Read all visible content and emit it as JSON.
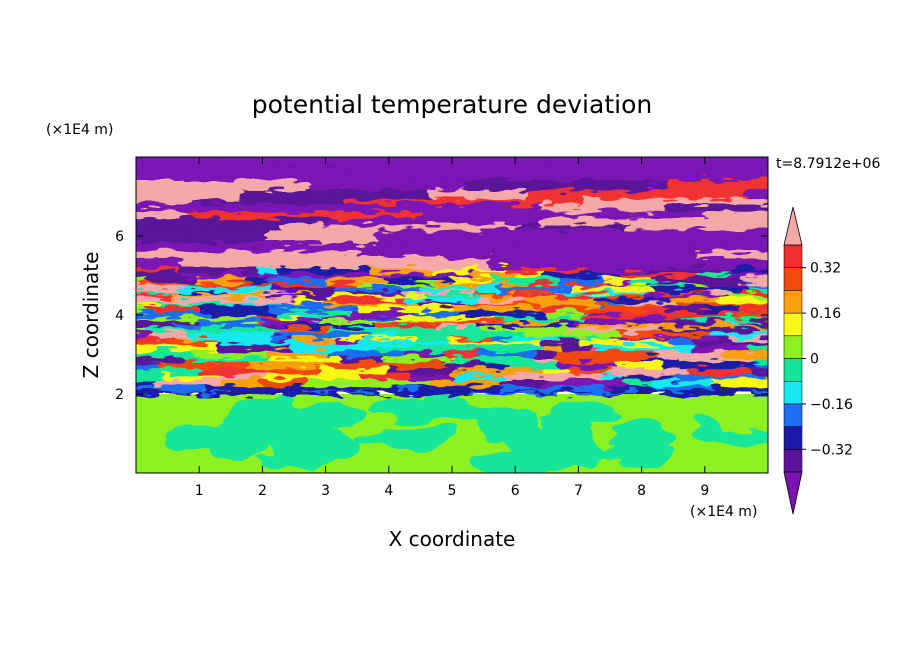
{
  "chart_data": {
    "type": "heatmap",
    "title": "potential temperature deviation",
    "xlabel": "X coordinate",
    "ylabel": "Z coordinate",
    "x_unit": "(×1E4 m)",
    "y_unit": "(×1E4 m)",
    "time_label": "t=8.7912e+06",
    "xlim": [
      0,
      10
    ],
    "ylim": [
      0,
      8
    ],
    "x_ticks": [
      1,
      2,
      3,
      4,
      5,
      6,
      7,
      8,
      9
    ],
    "y_ticks": [
      2,
      4,
      6
    ],
    "colorbar": {
      "levels": [
        -0.4,
        -0.32,
        -0.24,
        -0.16,
        -0.08,
        0,
        0.08,
        0.16,
        0.24,
        0.32,
        0.4
      ],
      "labeled_levels": [
        -0.32,
        -0.16,
        0,
        0.16,
        0.32
      ],
      "tick_labels": [
        "0.32",
        "0.16",
        "0",
        "−0.16",
        "−0.32"
      ],
      "colors": [
        "#7a12b4",
        "#5a129a",
        "#1a1aa6",
        "#1e6ef0",
        "#18e8f0",
        "#16e69a",
        "#8cf022",
        "#f8f818",
        "#f8a010",
        "#f04a10",
        "#f03030",
        "#f4a8a8"
      ],
      "extend": "both"
    },
    "regions": [
      {
        "z_range": [
          7.5,
          8
        ],
        "description": "dominant",
        "level": -0.4
      },
      {
        "z_range": [
          5.2,
          7.5
        ],
        "description": "alternating bands",
        "levels": [
          -0.4,
          0.4
        ]
      },
      {
        "z_range": [
          2.3,
          5.2
        ],
        "description": "mixed perturbations",
        "levels": [
          -0.4,
          0.4
        ]
      },
      {
        "z_range": [
          2.0,
          2.3
        ],
        "description": "thin negative band",
        "level": -0.32
      },
      {
        "z_range": [
          0,
          2.0
        ],
        "description": "near-neutral eddies",
        "levels": [
          0,
          0.08
        ]
      }
    ]
  }
}
